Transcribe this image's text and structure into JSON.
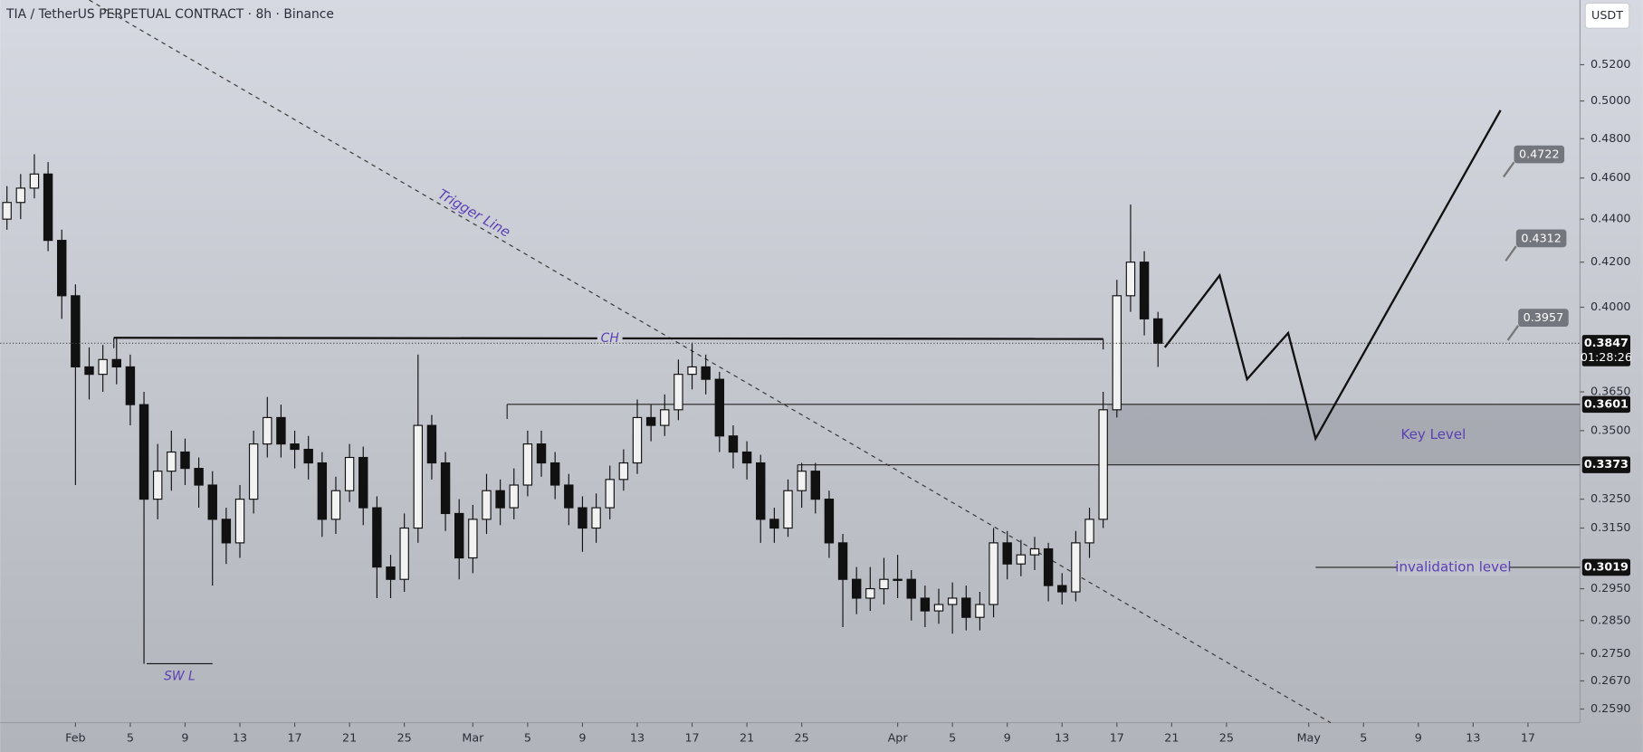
{
  "chart_data": {
    "type": "candlestick",
    "title": "TIA / TetherUS PERPETUAL CONTRACT · 8h · Binance",
    "currency": "USDT",
    "x": [
      -5,
      -4,
      -3,
      -2,
      -1,
      0,
      1,
      2,
      3,
      4,
      5,
      6,
      7,
      8,
      9,
      10,
      11,
      12,
      13,
      14,
      15,
      16,
      17,
      18,
      19,
      20,
      21,
      22,
      23,
      24,
      25,
      26,
      27,
      28,
      29,
      30,
      31,
      32,
      33,
      34,
      35,
      36,
      37,
      38,
      39,
      40,
      41,
      42,
      43,
      44,
      45,
      46,
      47,
      48,
      49,
      50,
      51,
      52,
      53,
      54,
      55,
      56,
      57,
      58,
      59,
      60,
      61,
      62,
      63,
      64,
      65,
      66,
      67,
      68,
      69,
      70,
      71,
      72,
      73,
      74,
      75,
      76,
      77,
      78,
      79
    ],
    "open": [
      0.44,
      0.448,
      0.455,
      0.462,
      0.43,
      0.405,
      0.375,
      0.372,
      0.378,
      0.375,
      0.36,
      0.325,
      0.335,
      0.342,
      0.336,
      0.33,
      0.318,
      0.31,
      0.325,
      0.345,
      0.355,
      0.345,
      0.343,
      0.338,
      0.318,
      0.328,
      0.34,
      0.322,
      0.302,
      0.298,
      0.315,
      0.352,
      0.338,
      0.32,
      0.305,
      0.318,
      0.328,
      0.322,
      0.33,
      0.345,
      0.338,
      0.33,
      0.322,
      0.315,
      0.322,
      0.332,
      0.338,
      0.355,
      0.352,
      0.358,
      0.372,
      0.375,
      0.37,
      0.348,
      0.342,
      0.338,
      0.318,
      0.315,
      0.328,
      0.335,
      0.325,
      0.31,
      0.298,
      0.292,
      0.295,
      0.298,
      0.298,
      0.292,
      0.288,
      0.29,
      0.292,
      0.286,
      0.29,
      0.31,
      0.303,
      0.306,
      0.308,
      0.296,
      0.294,
      0.31,
      0.318,
      0.358,
      0.405,
      0.42,
      0.395
    ],
    "high": [
      0.456,
      0.462,
      0.472,
      0.468,
      0.435,
      0.41,
      0.383,
      0.384,
      0.387,
      0.38,
      0.365,
      0.345,
      0.35,
      0.347,
      0.34,
      0.335,
      0.322,
      0.33,
      0.35,
      0.363,
      0.36,
      0.35,
      0.348,
      0.342,
      0.333,
      0.345,
      0.344,
      0.326,
      0.306,
      0.32,
      0.38,
      0.356,
      0.342,
      0.325,
      0.323,
      0.334,
      0.332,
      0.336,
      0.35,
      0.35,
      0.342,
      0.334,
      0.326,
      0.327,
      0.337,
      0.343,
      0.362,
      0.36,
      0.364,
      0.378,
      0.385,
      0.38,
      0.373,
      0.352,
      0.346,
      0.341,
      0.322,
      0.332,
      0.338,
      0.338,
      0.328,
      0.313,
      0.302,
      0.302,
      0.305,
      0.306,
      0.301,
      0.296,
      0.295,
      0.297,
      0.296,
      0.294,
      0.315,
      0.314,
      0.311,
      0.312,
      0.31,
      0.3,
      0.314,
      0.322,
      0.365,
      0.412,
      0.447,
      0.425,
      0.398
    ],
    "low": [
      0.435,
      0.44,
      0.45,
      0.425,
      0.395,
      0.33,
      0.362,
      0.365,
      0.368,
      0.352,
      0.272,
      0.318,
      0.328,
      0.33,
      0.322,
      0.296,
      0.303,
      0.305,
      0.32,
      0.34,
      0.34,
      0.336,
      0.332,
      0.312,
      0.313,
      0.324,
      0.316,
      0.292,
      0.292,
      0.294,
      0.31,
      0.332,
      0.314,
      0.298,
      0.3,
      0.313,
      0.316,
      0.318,
      0.326,
      0.333,
      0.325,
      0.316,
      0.307,
      0.31,
      0.318,
      0.328,
      0.334,
      0.346,
      0.348,
      0.354,
      0.366,
      0.364,
      0.342,
      0.336,
      0.332,
      0.31,
      0.31,
      0.312,
      0.322,
      0.32,
      0.305,
      0.283,
      0.287,
      0.288,
      0.29,
      0.292,
      0.285,
      0.283,
      0.284,
      0.281,
      0.282,
      0.282,
      0.286,
      0.298,
      0.299,
      0.301,
      0.291,
      0.29,
      0.291,
      0.305,
      0.315,
      0.355,
      0.398,
      0.388,
      0.375
    ],
    "close": [
      0.448,
      0.455,
      0.462,
      0.43,
      0.405,
      0.375,
      0.372,
      0.378,
      0.375,
      0.36,
      0.325,
      0.335,
      0.342,
      0.336,
      0.33,
      0.318,
      0.31,
      0.325,
      0.345,
      0.355,
      0.345,
      0.343,
      0.338,
      0.318,
      0.328,
      0.34,
      0.322,
      0.302,
      0.298,
      0.315,
      0.352,
      0.338,
      0.32,
      0.305,
      0.318,
      0.328,
      0.322,
      0.33,
      0.345,
      0.338,
      0.33,
      0.322,
      0.315,
      0.322,
      0.332,
      0.338,
      0.355,
      0.352,
      0.358,
      0.372,
      0.375,
      0.37,
      0.348,
      0.342,
      0.338,
      0.318,
      0.315,
      0.328,
      0.335,
      0.325,
      0.31,
      0.298,
      0.292,
      0.295,
      0.298,
      0.298,
      0.292,
      0.288,
      0.29,
      0.292,
      0.286,
      0.29,
      0.31,
      0.303,
      0.306,
      0.308,
      0.296,
      0.294,
      0.31,
      0.318,
      0.358,
      0.405,
      0.42,
      0.395,
      0.3847
    ],
    "xlim": [
      -5.5,
      109.8
    ],
    "ylim": [
      0.2552,
      0.5577
    ],
    "log_scale": true,
    "xticks": [
      {
        "value": 0,
        "label": "Feb"
      },
      {
        "value": 4,
        "label": "5"
      },
      {
        "value": 8,
        "label": "9"
      },
      {
        "value": 12,
        "label": "13"
      },
      {
        "value": 16,
        "label": "17"
      },
      {
        "value": 20,
        "label": "21"
      },
      {
        "value": 24,
        "label": "25"
      },
      {
        "value": 29,
        "label": "Mar"
      },
      {
        "value": 33,
        "label": "5"
      },
      {
        "value": 37,
        "label": "9"
      },
      {
        "value": 41,
        "label": "13"
      },
      {
        "value": 45,
        "label": "17"
      },
      {
        "value": 49,
        "label": "21"
      },
      {
        "value": 53,
        "label": "25"
      },
      {
        "value": 60,
        "label": "Apr"
      },
      {
        "value": 64,
        "label": "5"
      },
      {
        "value": 68,
        "label": "9"
      },
      {
        "value": 72,
        "label": "13"
      },
      {
        "value": 76,
        "label": "17"
      },
      {
        "value": 80,
        "label": "21"
      },
      {
        "value": 84,
        "label": "25"
      },
      {
        "value": 90,
        "label": "May"
      },
      {
        "value": 94,
        "label": "5"
      },
      {
        "value": 98,
        "label": "9"
      },
      {
        "value": 102,
        "label": "13"
      },
      {
        "value": 106,
        "label": "17"
      }
    ],
    "yticks": [
      {
        "value": 0.52,
        "label": "0.5200"
      },
      {
        "value": 0.5,
        "label": "0.5000"
      },
      {
        "value": 0.48,
        "label": "0.4800"
      },
      {
        "value": 0.46,
        "label": "0.4600"
      },
      {
        "value": 0.44,
        "label": "0.4400"
      },
      {
        "value": 0.42,
        "label": "0.4200"
      },
      {
        "value": 0.4,
        "label": "0.4000"
      },
      {
        "value": 0.365,
        "label": "0.3650"
      },
      {
        "value": 0.35,
        "label": "0.3500"
      },
      {
        "value": 0.325,
        "label": "0.3250"
      },
      {
        "value": 0.315,
        "label": "0.3150"
      },
      {
        "value": 0.295,
        "label": "0.2950"
      },
      {
        "value": 0.285,
        "label": "0.2850"
      },
      {
        "value": 0.275,
        "label": "0.2750"
      },
      {
        "value": 0.267,
        "label": "0.2670"
      },
      {
        "value": 0.259,
        "label": "0.2590"
      }
    ],
    "last_price": {
      "value": 0.3847,
      "countdown": "01:28:26"
    },
    "annotations": {
      "trigger_line": {
        "label": "Trigger Line",
        "x": [
          1.0,
          91.6
        ],
        "y": [
          0.5577,
          0.2552
        ]
      },
      "ch": {
        "label": "CH",
        "x": [
          2.8,
          75
        ],
        "y": [
          0.387,
          0.3865
        ]
      },
      "sw_l": {
        "label": "SW L",
        "x": [
          5.2,
          10
        ],
        "y": 0.272
      },
      "key_level": {
        "label": "Key Level",
        "x": 75.3,
        "top": 0.3601,
        "bottom": 0.3373
      },
      "level_lines": [
        {
          "x": 31.5,
          "value": 0.3601
        },
        {
          "x": 52.7,
          "value": 0.3373
        }
      ],
      "invalidation": {
        "label": "invalidation level",
        "x": 90.5,
        "value": 0.3019
      },
      "projection": {
        "x": [
          79.5,
          83.5,
          85.5,
          88.5,
          90.5,
          104
        ],
        "y": [
          0.383,
          0.414,
          0.37,
          0.389,
          0.347,
          0.495
        ]
      },
      "targets": [
        0.4722,
        0.4312,
        0.3957
      ]
    }
  }
}
